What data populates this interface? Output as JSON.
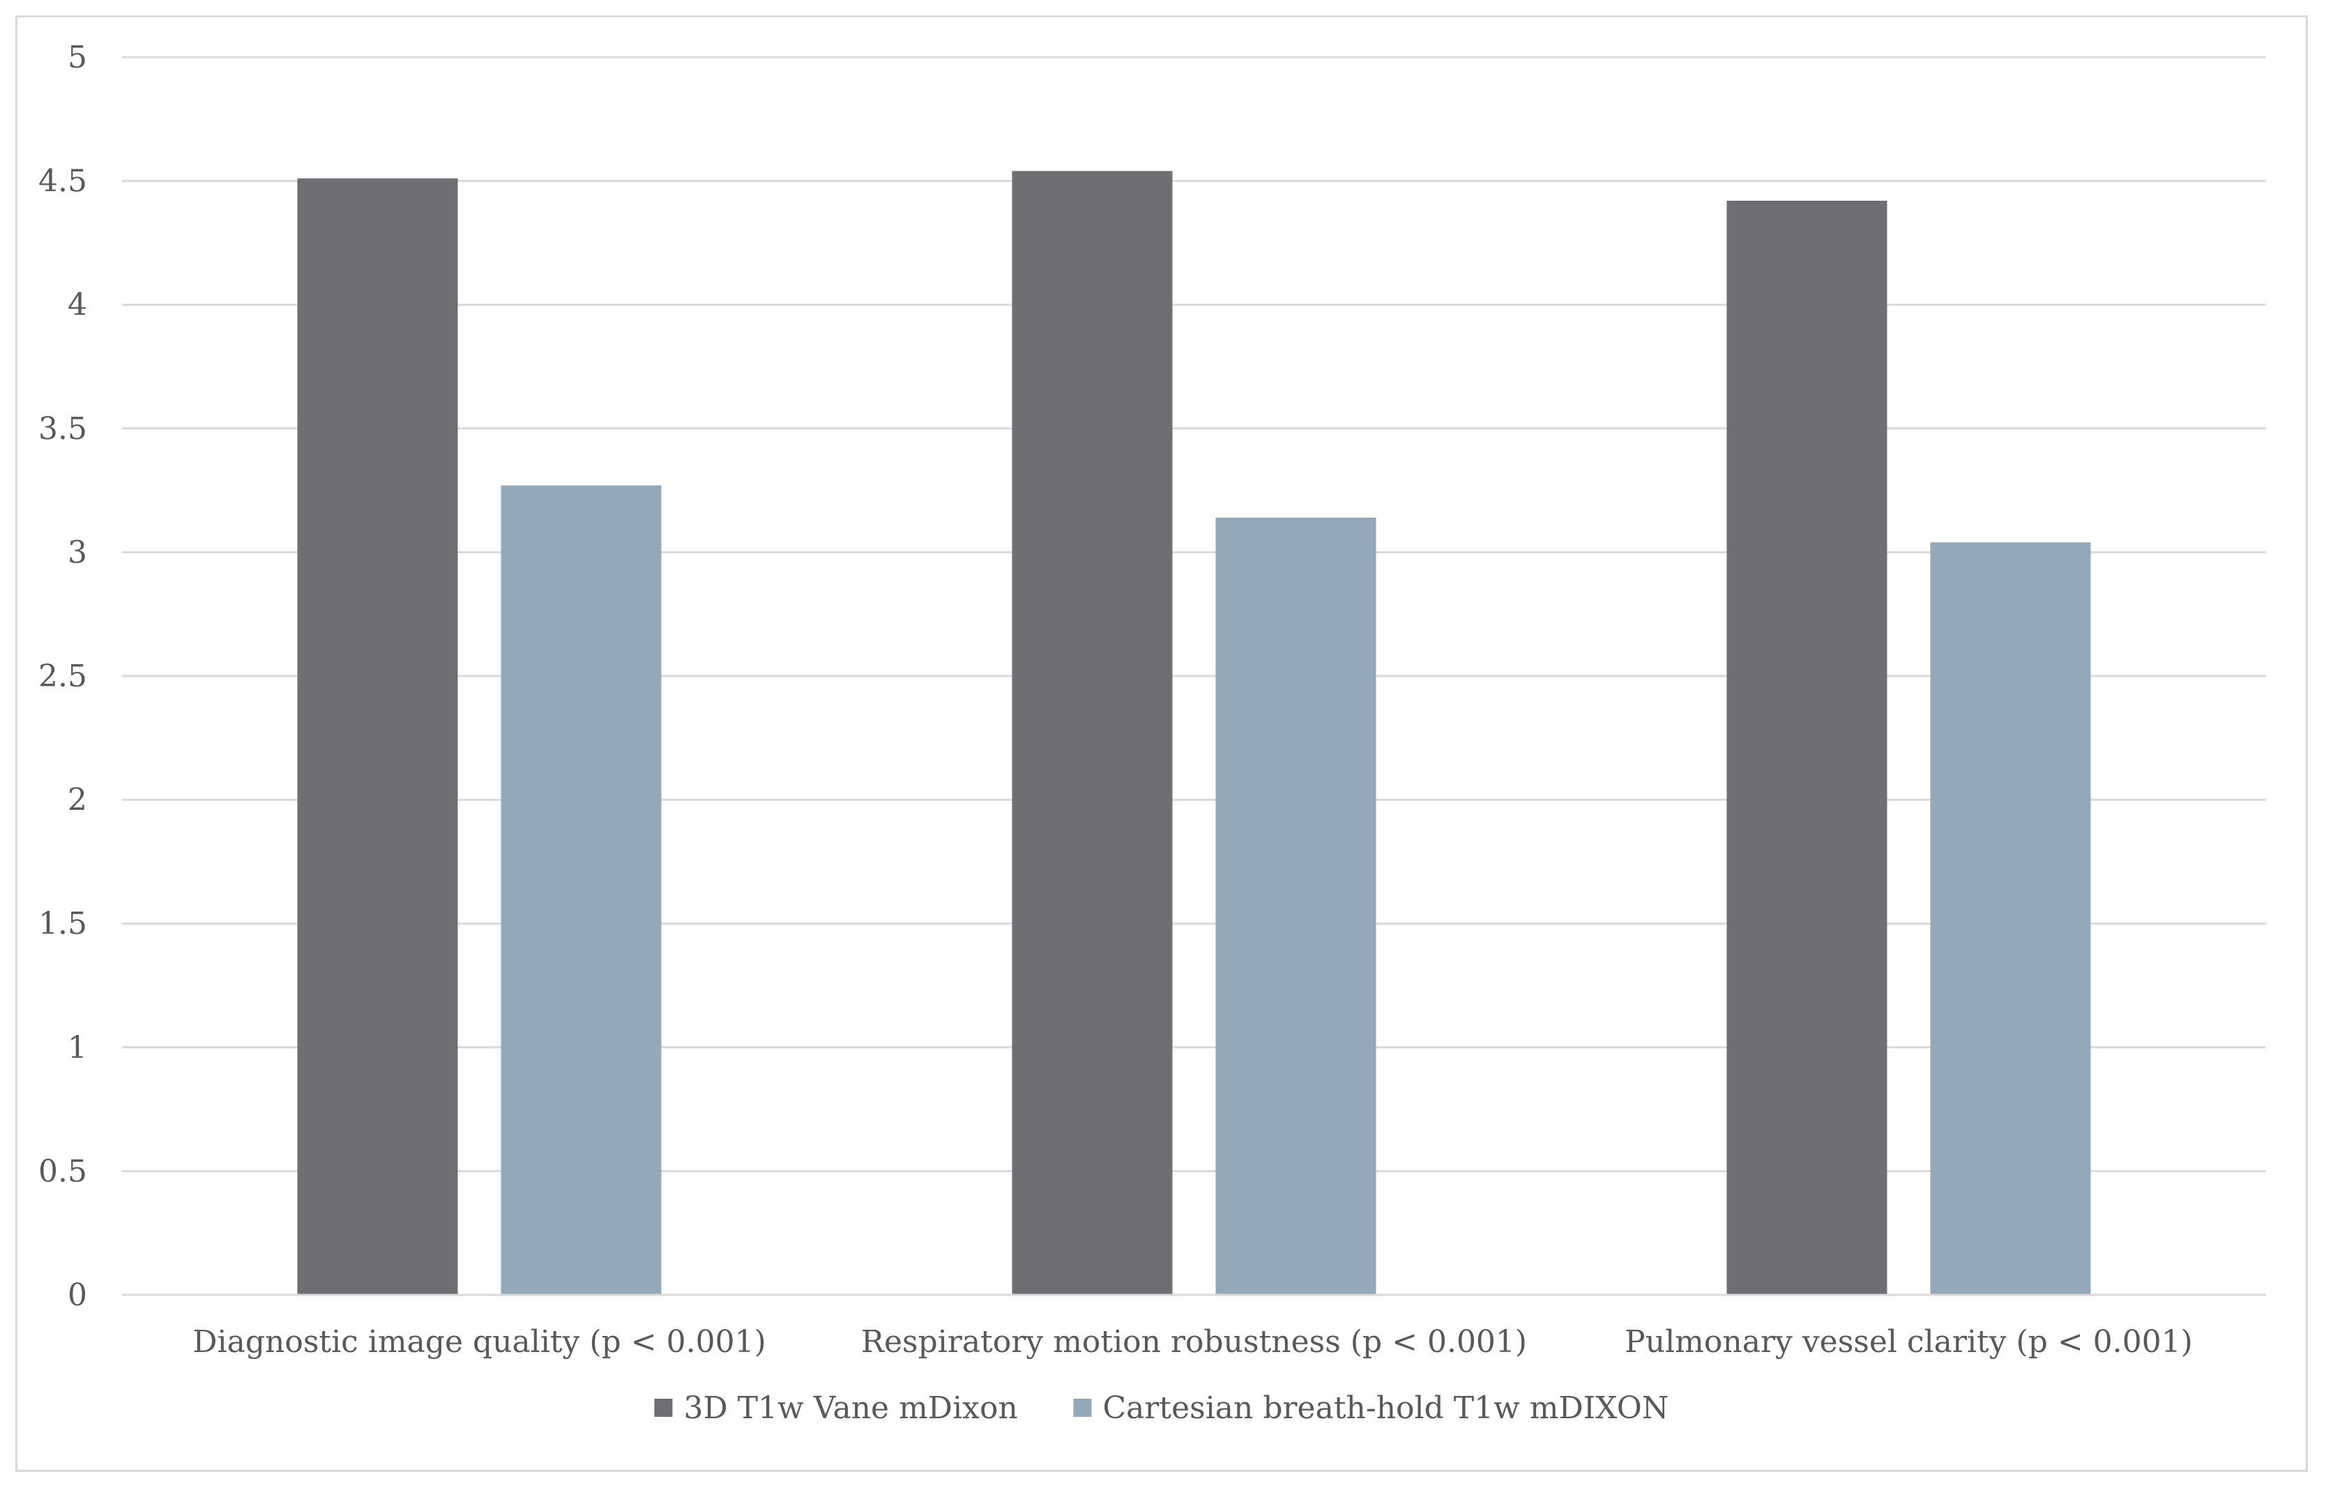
{
  "chart_data": {
    "type": "bar",
    "title": "",
    "xlabel": "",
    "ylabel": "",
    "categories": [
      "Diagnostic image quality (p < 0.001)",
      "Respiratory motion robustness (p < 0.001)",
      "Pulmonary vessel clarity (p < 0.001)"
    ],
    "series": [
      {
        "name": "3D T1w Vane mDixon",
        "color": "#6e6e73",
        "values": [
          4.51,
          4.54,
          4.42
        ]
      },
      {
        "name": "Cartesian breath-hold T1w mDIXON",
        "color": "#93a8b8",
        "values": [
          3.27,
          3.14,
          3.04
        ]
      }
    ],
    "ylim": [
      0,
      5
    ],
    "yticks": [
      0,
      0.5,
      1,
      1.5,
      2,
      2.5,
      3,
      3.5,
      4,
      4.5,
      5
    ],
    "ytick_labels": [
      "0",
      "0.5",
      "1",
      "1.5",
      "2",
      "2.5",
      "3",
      "3.5",
      "4",
      "4.5",
      "5"
    ],
    "grid": true,
    "legend_position": "bottom"
  }
}
